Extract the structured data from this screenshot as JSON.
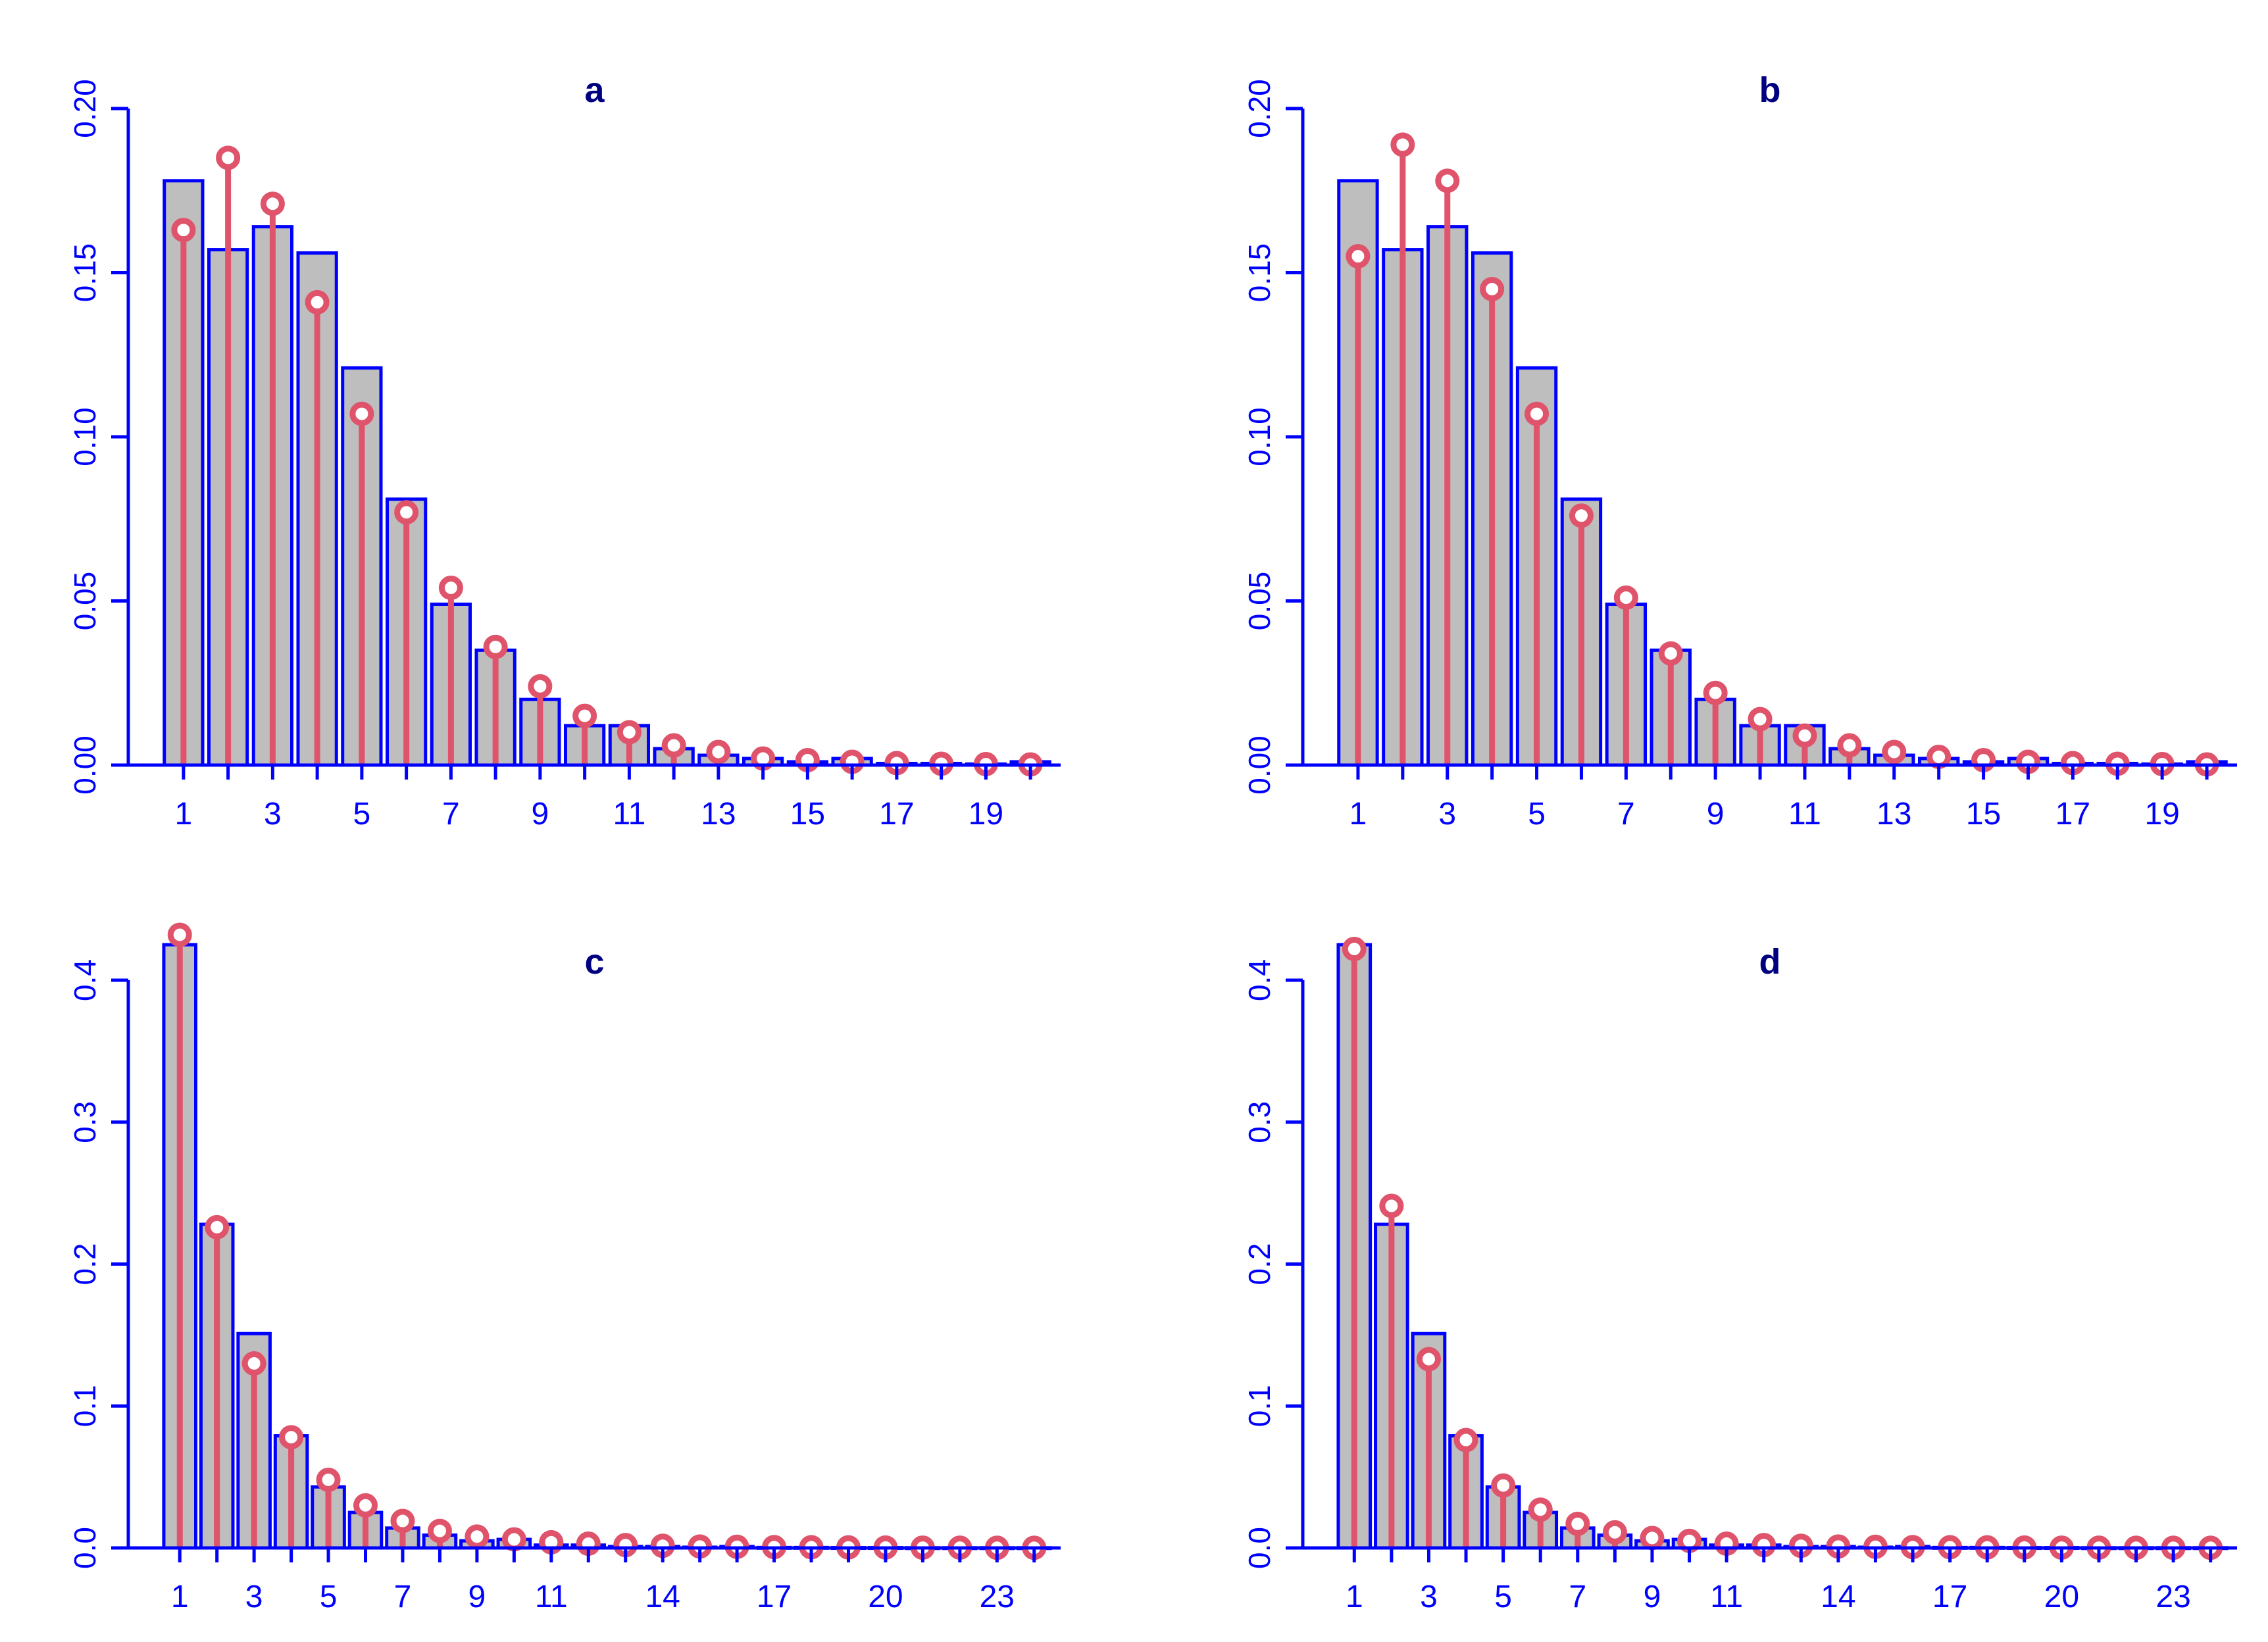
{
  "colors": {
    "axis": "#0000ff",
    "bar_fill": "#bebebe",
    "bar_stroke": "#0000ff",
    "stem": "#df536b",
    "title": "#000080"
  },
  "chart_data": [
    {
      "type": "bar",
      "title": "a",
      "categories": [
        1,
        2,
        3,
        4,
        5,
        6,
        7,
        8,
        9,
        10,
        11,
        12,
        13,
        14,
        15,
        16,
        17,
        18,
        19,
        20
      ],
      "xtick_labels": [
        "1",
        "3",
        "5",
        "7",
        "9",
        "11",
        "13",
        "15",
        "17",
        "19"
      ],
      "ylim": [
        0,
        0.2
      ],
      "ytick_labels": [
        "0.00",
        "0.05",
        "0.10",
        "0.15",
        "0.20"
      ],
      "series": [
        {
          "values": [
            0.178,
            0.157,
            0.164,
            0.156,
            0.121,
            0.081,
            0.049,
            0.035,
            0.02,
            0.012,
            0.012,
            0.005,
            0.003,
            0.002,
            0.001,
            0.002,
            0.0005,
            0.0005,
            0.0003,
            0.001
          ]
        },
        {
          "values": [
            0.163,
            0.185,
            0.171,
            0.141,
            0.107,
            0.077,
            0.054,
            0.036,
            0.024,
            0.015,
            0.01,
            0.006,
            0.004,
            0.002,
            0.0015,
            0.001,
            0.0006,
            0.0004,
            0.0003,
            0.0002
          ]
        }
      ]
    },
    {
      "type": "bar",
      "title": "b",
      "categories": [
        1,
        2,
        3,
        4,
        5,
        6,
        7,
        8,
        9,
        10,
        11,
        12,
        13,
        14,
        15,
        16,
        17,
        18,
        19,
        20
      ],
      "xtick_labels": [
        "1",
        "3",
        "5",
        "7",
        "9",
        "11",
        "13",
        "15",
        "17",
        "19"
      ],
      "ylim": [
        0,
        0.2
      ],
      "ytick_labels": [
        "0.00",
        "0.05",
        "0.10",
        "0.15",
        "0.20"
      ],
      "series": [
        {
          "values": [
            0.178,
            0.157,
            0.164,
            0.156,
            0.121,
            0.081,
            0.049,
            0.035,
            0.02,
            0.012,
            0.012,
            0.005,
            0.003,
            0.002,
            0.001,
            0.002,
            0.0005,
            0.0005,
            0.0003,
            0.001
          ]
        },
        {
          "values": [
            0.155,
            0.189,
            0.178,
            0.145,
            0.107,
            0.076,
            0.051,
            0.034,
            0.022,
            0.014,
            0.009,
            0.006,
            0.004,
            0.0025,
            0.0015,
            0.001,
            0.0006,
            0.0004,
            0.0003,
            0.0002
          ]
        }
      ]
    },
    {
      "type": "bar",
      "title": "c",
      "categories": [
        1,
        2,
        3,
        4,
        5,
        6,
        7,
        8,
        9,
        10,
        11,
        12,
        13,
        14,
        15,
        16,
        17,
        18,
        19,
        20,
        21,
        22,
        23,
        24
      ],
      "xtick_labels": [
        "1",
        "3",
        "5",
        "7",
        "9",
        "11",
        "14",
        "17",
        "20",
        "23"
      ],
      "ylim": [
        0,
        0.4
      ],
      "ytick_labels": [
        "0.0",
        "0.1",
        "0.2",
        "0.3",
        "0.4"
      ],
      "series": [
        {
          "values": [
            0.425,
            0.228,
            0.151,
            0.079,
            0.043,
            0.025,
            0.014,
            0.009,
            0.005,
            0.006,
            0.002,
            0.002,
            0.001,
            0.001,
            0.0005,
            0.001,
            0.0003,
            0.0003,
            0.0002,
            0.0002,
            0.0001,
            0.0001,
            0.0001,
            0.0001
          ]
        },
        {
          "values": [
            0.432,
            0.226,
            0.13,
            0.078,
            0.048,
            0.03,
            0.019,
            0.012,
            0.008,
            0.006,
            0.004,
            0.003,
            0.002,
            0.0015,
            0.001,
            0.0008,
            0.0006,
            0.0005,
            0.0004,
            0.0003,
            0.0002,
            0.0002,
            0.0001,
            0.0001
          ]
        }
      ]
    },
    {
      "type": "bar",
      "title": "d",
      "categories": [
        1,
        2,
        3,
        4,
        5,
        6,
        7,
        8,
        9,
        10,
        11,
        12,
        13,
        14,
        15,
        16,
        17,
        18,
        19,
        20,
        21,
        22,
        23,
        24
      ],
      "xtick_labels": [
        "1",
        "3",
        "5",
        "7",
        "9",
        "11",
        "14",
        "17",
        "20",
        "23"
      ],
      "ylim": [
        0,
        0.4
      ],
      "ytick_labels": [
        "0.0",
        "0.1",
        "0.2",
        "0.3",
        "0.4"
      ],
      "series": [
        {
          "values": [
            0.425,
            0.228,
            0.151,
            0.079,
            0.043,
            0.025,
            0.014,
            0.009,
            0.005,
            0.006,
            0.002,
            0.002,
            0.001,
            0.001,
            0.0005,
            0.001,
            0.0003,
            0.0003,
            0.0002,
            0.0002,
            0.0001,
            0.0001,
            0.0001,
            0.0001
          ]
        },
        {
          "values": [
            0.422,
            0.241,
            0.133,
            0.076,
            0.044,
            0.027,
            0.017,
            0.011,
            0.007,
            0.005,
            0.003,
            0.002,
            0.0015,
            0.001,
            0.0008,
            0.0006,
            0.0005,
            0.0004,
            0.0003,
            0.0002,
            0.0002,
            0.0001,
            0.0001,
            0.0001
          ]
        }
      ]
    }
  ]
}
